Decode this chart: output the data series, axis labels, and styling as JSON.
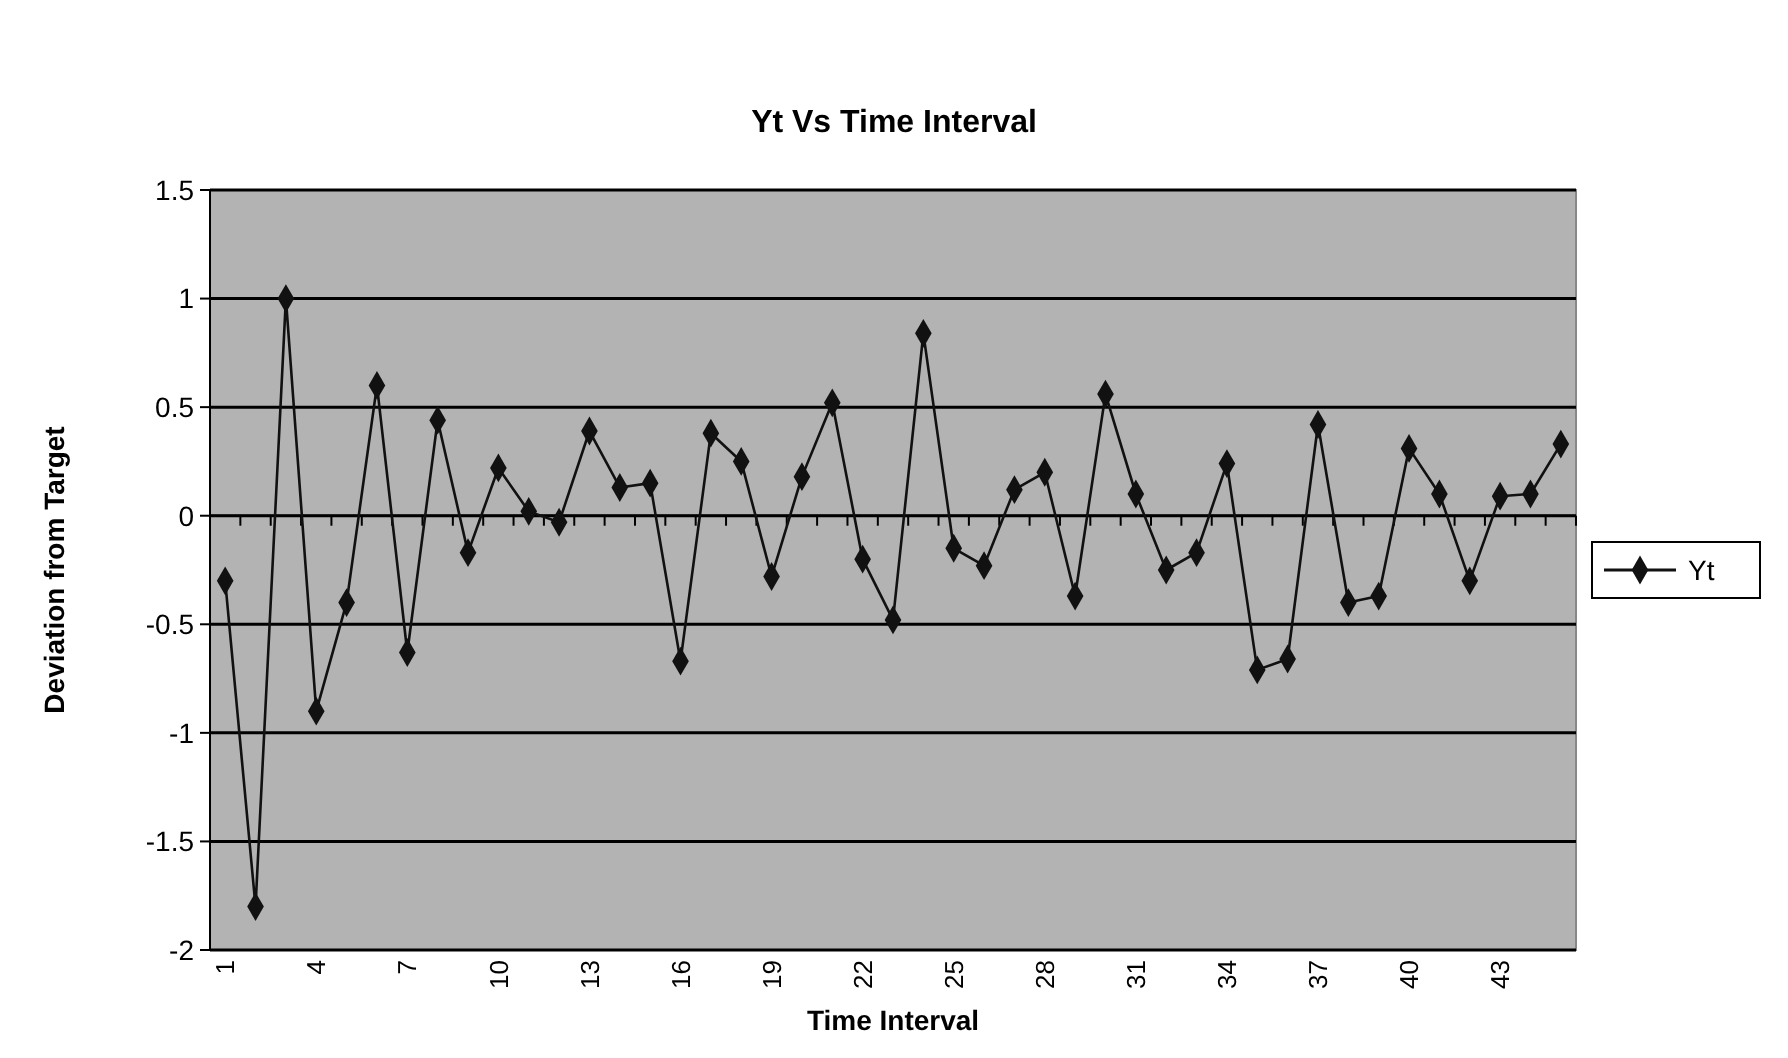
{
  "chart_data": {
    "type": "line",
    "title": "Yt Vs Time Interval",
    "xlabel": "Time Interval",
    "ylabel": "Deviation from Target",
    "categories": [
      "1",
      null,
      null,
      "4",
      null,
      null,
      "7",
      null,
      null,
      "10",
      null,
      null,
      "13",
      null,
      null,
      "16",
      null,
      null,
      "19",
      null,
      null,
      "22",
      null,
      null,
      "25",
      null,
      null,
      "28",
      null,
      null,
      "31",
      null,
      null,
      "34",
      null,
      null,
      "37",
      null,
      null,
      "40",
      null,
      null,
      "43",
      null,
      null
    ],
    "series": [
      {
        "name": "Yt",
        "color": "#111111",
        "values": [
          -0.3,
          -1.8,
          1.0,
          -0.9,
          -0.4,
          0.6,
          -0.63,
          0.44,
          -0.17,
          0.22,
          0.02,
          -0.03,
          0.39,
          0.13,
          0.15,
          -0.67,
          0.38,
          0.25,
          -0.28,
          0.18,
          0.52,
          -0.2,
          -0.48,
          0.84,
          -0.15,
          -0.23,
          0.12,
          0.2,
          -0.37,
          0.56,
          0.1,
          -0.25,
          -0.17,
          0.24,
          -0.71,
          -0.66,
          0.42,
          -0.4,
          -0.37,
          0.31,
          0.1,
          -0.3,
          0.09,
          0.1,
          0.33
        ]
      }
    ],
    "ylim": [
      -2,
      1.5
    ],
    "yticks": [
      -2,
      -1.5,
      -1,
      -0.5,
      0,
      0.5,
      1,
      1.5
    ],
    "grid": "y",
    "legend": "right",
    "marker": "diamond",
    "line_style": "solid"
  }
}
